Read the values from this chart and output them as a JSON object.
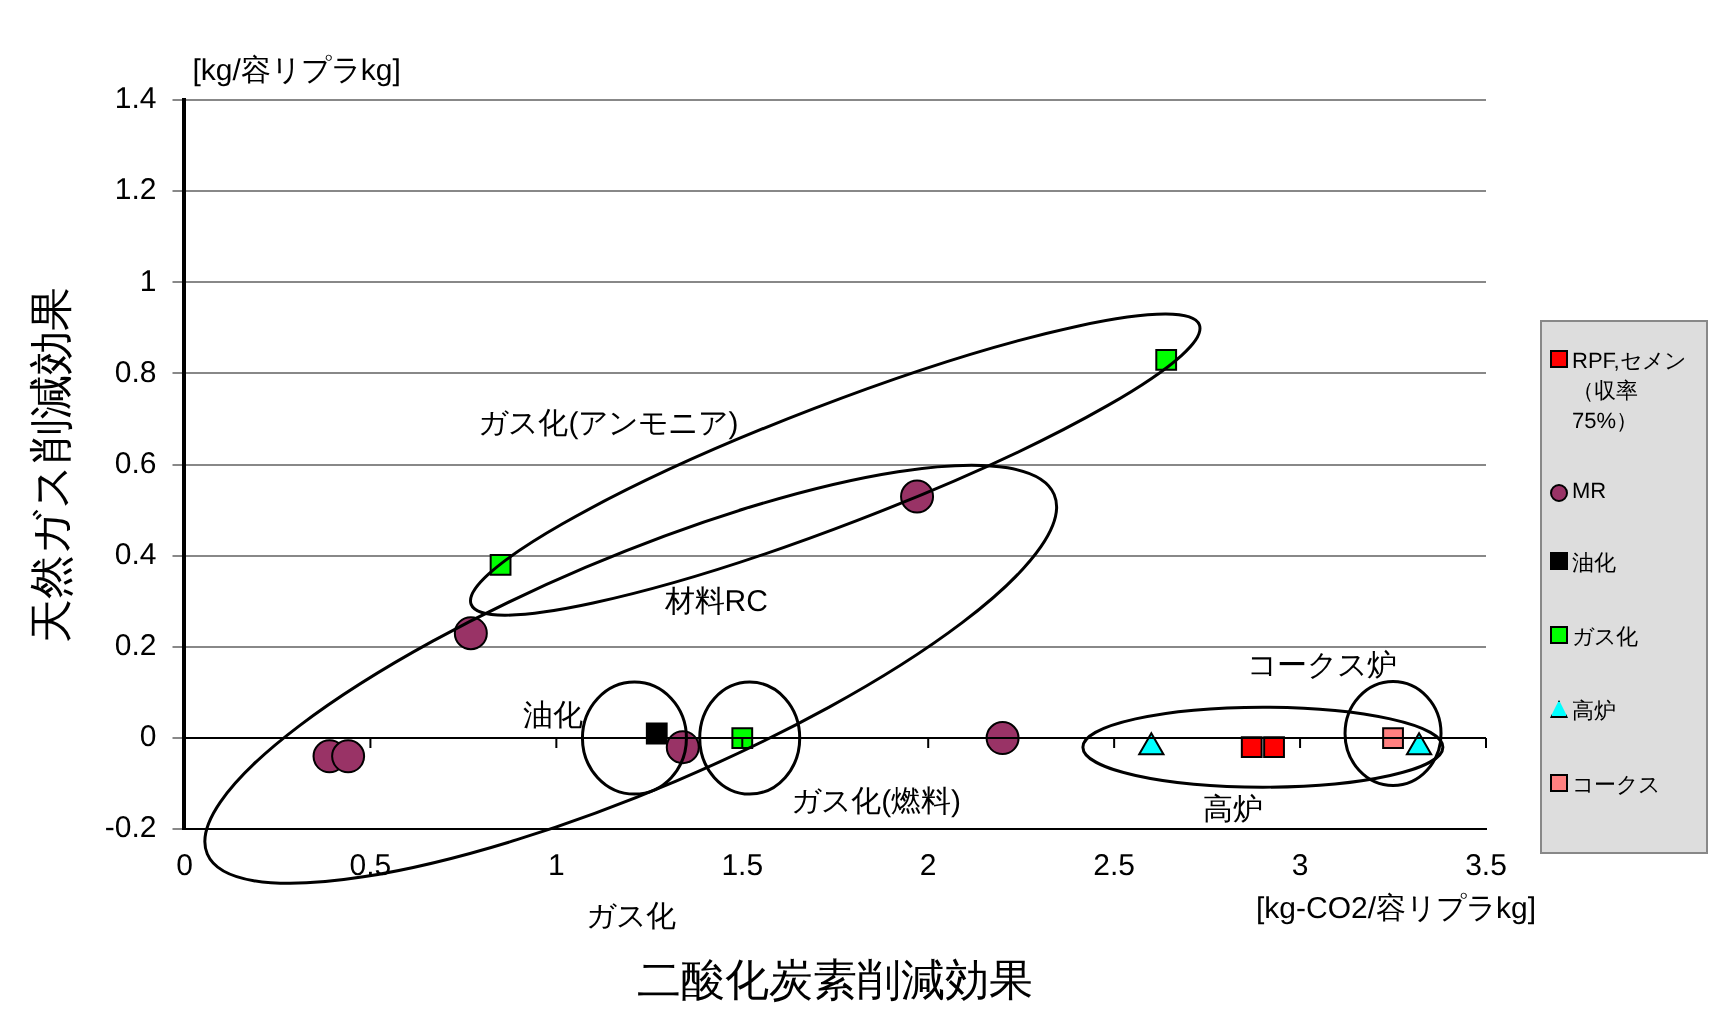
{
  "chart_data": {
    "type": "scatter",
    "xlabel": "二酸化炭素削減効果",
    "ylabel": "天然ガス削減効果",
    "xlim": [
      0,
      3.5
    ],
    "xticks": [
      0,
      0.5,
      1,
      1.5,
      2,
      2.5,
      3,
      3.5
    ],
    "ylim": [
      -0.2,
      1.4
    ],
    "yticks": [
      -0.2,
      0,
      0.2,
      0.4,
      0.6,
      0.8,
      1,
      1.2,
      1.4
    ],
    "grid": "y",
    "legend": "right",
    "series": [
      {
        "name": "RPF,セメン（収率75%）",
        "color": "#ff0000",
        "marker": "square",
        "x": [
          2.87,
          2.93
        ],
        "values": [
          -0.02,
          -0.02
        ]
      },
      {
        "name": "MR",
        "color": "#993366",
        "marker": "circle",
        "x": [
          0.39,
          0.44,
          0.77,
          1.97,
          1.34,
          2.2
        ],
        "values": [
          -0.04,
          -0.04,
          0.23,
          0.53,
          -0.02,
          0
        ]
      },
      {
        "name": "油化",
        "color": "#000000",
        "marker": "square",
        "x": [
          1.27
        ],
        "values": [
          0.01
        ]
      },
      {
        "name": "ガス化",
        "color": "#00ff00",
        "marker": "square",
        "x": [
          0.85,
          2.64,
          1.5
        ],
        "values": [
          0.38,
          0.83,
          0
        ]
      },
      {
        "name": "高炉",
        "color": "#00ffff",
        "marker": "triangle",
        "x": [
          2.6,
          3.32
        ],
        "values": [
          -0.02,
          -0.02
        ]
      },
      {
        "name": "コークス",
        "color": "#ff8080",
        "marker": "square",
        "x": [
          3.25
        ],
        "values": [
          0
        ]
      }
    ],
    "annotations": [
      "ガス化(アンモニア)",
      "材料RC",
      "油化",
      "ガス化(燃料)",
      "高炉",
      "コークス炉",
      "[kg/容リプラkg]",
      "[kg-CO2/容リプラkg]",
      "ガス化"
    ]
  }
}
